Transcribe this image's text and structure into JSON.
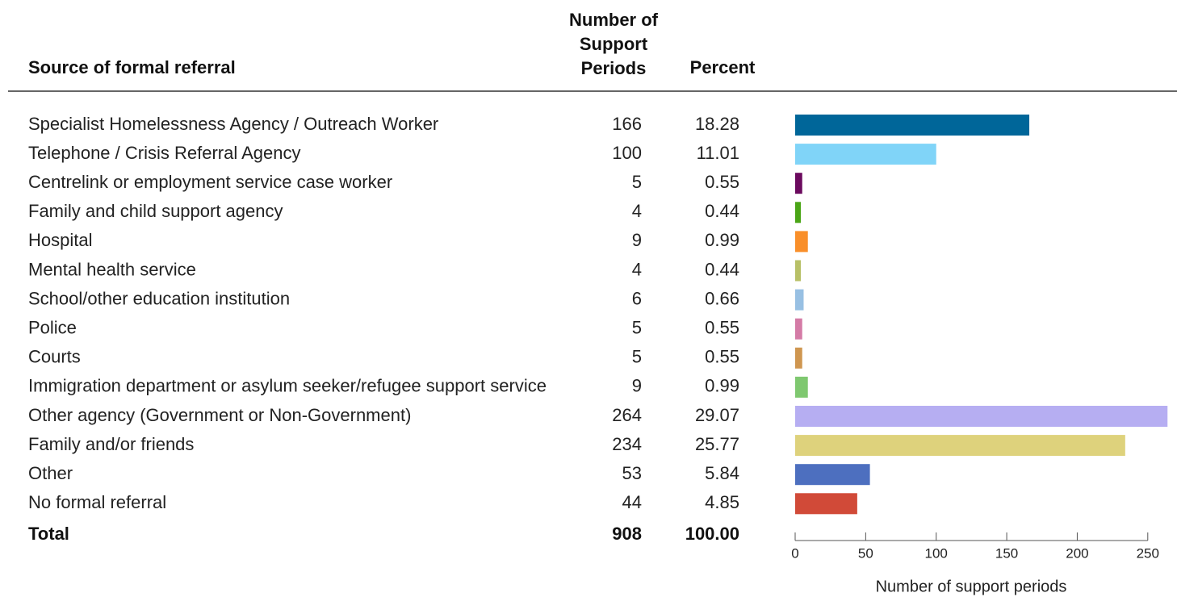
{
  "chart_data": {
    "type": "bar",
    "orientation": "horizontal",
    "headers": [
      "Source of formal referral",
      "Number of Support Periods",
      "Percent"
    ],
    "categories": [
      "Specialist Homelessness Agency / Outreach Worker",
      "Telephone / Crisis Referral Agency",
      "Centrelink or employment service case worker",
      "Family and child support agency",
      "Hospital",
      "Mental health service",
      "School/other education institution",
      "Police",
      "Courts",
      "Immigration department or asylum seeker/refugee support service",
      "Other agency (Government or Non-Government)",
      "Family and/or friends",
      "Other",
      "No formal referral"
    ],
    "values": [
      166,
      100,
      5,
      4,
      9,
      4,
      6,
      5,
      5,
      9,
      264,
      234,
      53,
      44
    ],
    "percent": [
      18.28,
      11.01,
      0.55,
      0.44,
      0.99,
      0.44,
      0.66,
      0.55,
      0.55,
      0.99,
      29.07,
      25.77,
      5.84,
      4.85
    ],
    "colors": [
      "#006699",
      "#80d4f8",
      "#6b0a5e",
      "#4aa516",
      "#f98f2a",
      "#b8c067",
      "#98c0e3",
      "#d47ba6",
      "#cf9650",
      "#7fc870",
      "#b6aef2",
      "#ded27c",
      "#4d6fbf",
      "#d14a38"
    ],
    "total_label": "Total",
    "total_count": 908,
    "total_percent": "100.00",
    "xlim": [
      0,
      265
    ],
    "xticks": [
      0,
      50,
      100,
      150,
      200,
      250
    ],
    "xlabel": "Number of support periods"
  }
}
